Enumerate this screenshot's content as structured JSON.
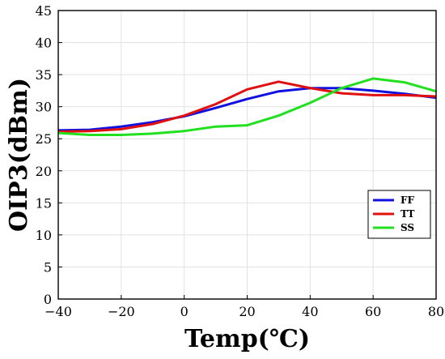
{
  "chart_data": {
    "type": "line",
    "title": "",
    "xlabel": "Temp(℃)",
    "ylabel": "OIP3(dBm)",
    "xlim": [
      -40,
      80
    ],
    "ylim": [
      0,
      45
    ],
    "xticks": [
      -40,
      -20,
      0,
      20,
      40,
      60,
      80
    ],
    "yticks": [
      0,
      5,
      10,
      15,
      20,
      25,
      30,
      35,
      40,
      45
    ],
    "xtick_labels": [
      "−40",
      "−20",
      "0",
      "20",
      "40",
      "60",
      "80"
    ],
    "ytick_labels": [
      "0",
      "5",
      "10",
      "15",
      "20",
      "25",
      "30",
      "35",
      "40",
      "45"
    ],
    "grid": true,
    "legend_position": "lower-right",
    "series": [
      {
        "name": "FF",
        "color": "#1010e0",
        "x": [
          -40,
          -30,
          -20,
          -10,
          0,
          10,
          20,
          30,
          40,
          50,
          60,
          70,
          80
        ],
        "y": [
          26.3,
          26.4,
          26.9,
          27.6,
          28.5,
          29.8,
          31.2,
          32.4,
          32.9,
          32.9,
          32.5,
          32.0,
          31.4
        ]
      },
      {
        "name": "TT",
        "color": "#e01010",
        "x": [
          -40,
          -30,
          -20,
          -10,
          0,
          10,
          20,
          30,
          40,
          50,
          60,
          70,
          80
        ],
        "y": [
          26.1,
          26.2,
          26.5,
          27.3,
          28.6,
          30.4,
          32.7,
          33.9,
          32.9,
          32.1,
          31.8,
          31.8,
          31.6
        ]
      },
      {
        "name": "SS",
        "color": "#20e020",
        "x": [
          -40,
          -30,
          -20,
          -10,
          0,
          10,
          20,
          30,
          40,
          50,
          60,
          70,
          80
        ],
        "y": [
          25.9,
          25.6,
          25.6,
          25.8,
          26.2,
          26.9,
          27.1,
          28.6,
          30.6,
          32.9,
          34.4,
          33.8,
          32.4
        ]
      }
    ]
  }
}
